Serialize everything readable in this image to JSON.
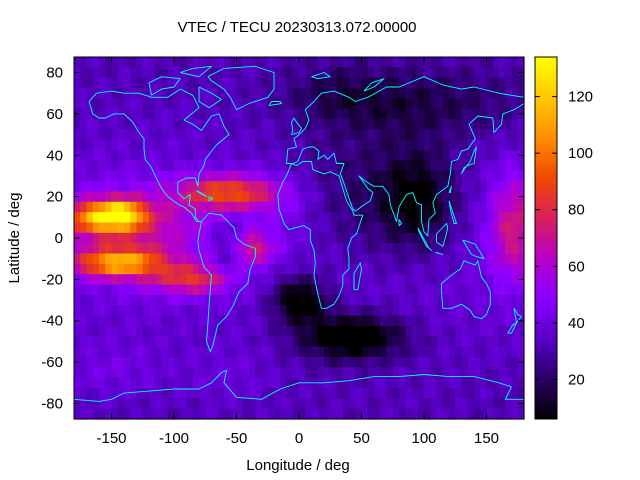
{
  "chart_data": {
    "type": "heatmap",
    "title": "VTEC / TECU 20230313.072.00000",
    "xlabel": "Longitude / deg",
    "ylabel": "Latitude / deg",
    "xlim": [
      -180,
      180
    ],
    "ylim": [
      -87.5,
      87.5
    ],
    "x_ticks": [
      -150,
      -100,
      -50,
      0,
      50,
      100,
      150
    ],
    "y_ticks": [
      -80,
      -60,
      -40,
      -20,
      0,
      20,
      40,
      60,
      80
    ],
    "colorbar": {
      "range": [
        6,
        134
      ],
      "ticks": [
        20,
        40,
        60,
        80,
        100,
        120
      ],
      "colormap": [
        "#000000",
        "#2a0066",
        "#5a00c8",
        "#8a00ff",
        "#b800c8",
        "#d8205a",
        "#f04a00",
        "#ff8c00",
        "#ffc800",
        "#ffff00"
      ]
    },
    "grid": false,
    "overlay": "cyan coastlines",
    "features": [
      {
        "lon": -155,
        "lat": 10,
        "sx": 22,
        "sy": 6,
        "value": 78
      },
      {
        "lon": -140,
        "lat": 12,
        "sx": 10,
        "sy": 4,
        "value": 32
      },
      {
        "lon": -145,
        "lat": -12,
        "sx": 25,
        "sy": 5,
        "value": 68
      },
      {
        "lon": -120,
        "lat": 3,
        "sx": 38,
        "sy": 16,
        "value": 22
      },
      {
        "lon": -85,
        "lat": -20,
        "sx": 22,
        "sy": 5,
        "value": 40
      },
      {
        "lon": -55,
        "lat": 22,
        "sx": 28,
        "sy": 6,
        "value": 52
      },
      {
        "lon": -40,
        "lat": -5,
        "sx": 14,
        "sy": 6,
        "value": 38
      },
      {
        "lon": -55,
        "lat": -5,
        "sx": 10,
        "sy": 8,
        "value": -25
      },
      {
        "lon": -10,
        "lat": 12,
        "sx": 20,
        "sy": 12,
        "value": 8
      },
      {
        "lon": 172,
        "lat": 5,
        "sx": 14,
        "sy": 18,
        "value": 35
      },
      {
        "lon": 0,
        "lat": -30,
        "sx": 16,
        "sy": 8,
        "value": -34
      },
      {
        "lon": 42,
        "lat": -48,
        "sx": 30,
        "sy": 8,
        "value": -38
      },
      {
        "lon": 60,
        "lat": 20,
        "sx": 50,
        "sy": 24,
        "value": -18
      },
      {
        "lon": 95,
        "lat": 18,
        "sx": 20,
        "sy": 16,
        "value": -22
      },
      {
        "lon": 100,
        "lat": 65,
        "sx": 60,
        "sy": 12,
        "value": -15
      },
      {
        "lon": 30,
        "lat": 70,
        "sx": 30,
        "sy": 10,
        "value": -10
      },
      {
        "lon": -150,
        "lat": -65,
        "sx": 30,
        "sy": 10,
        "value": 8
      },
      {
        "lon": -60,
        "lat": -68,
        "sx": 25,
        "sy": 10,
        "value": 6
      }
    ]
  },
  "colors": {
    "coastline": "#00ffff",
    "frame": "#000000",
    "background": "#ffffff"
  }
}
